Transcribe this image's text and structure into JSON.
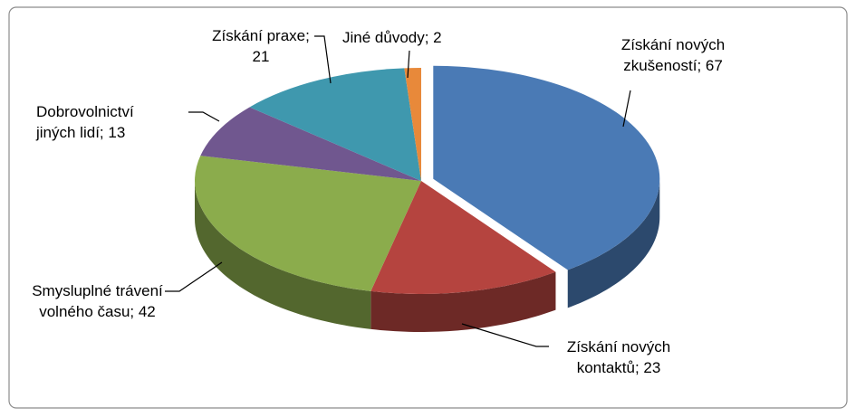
{
  "chart_data": {
    "type": "pie3d",
    "labels": [
      "Získání nových zkušeností; 67",
      "Získání nových kontaktů; 23",
      "Smysluplné trávení volného času; 42",
      "Dobrovolnictví jiných lidí; 13",
      "Získání praxe; 21",
      "Jiné důvody; 2"
    ],
    "values": [
      67,
      23,
      42,
      13,
      21,
      2
    ],
    "colors": [
      "#4a7ab5",
      "#b5443f",
      "#8bac4c",
      "#70578f",
      "#3f98ae",
      "#e8893a"
    ]
  }
}
